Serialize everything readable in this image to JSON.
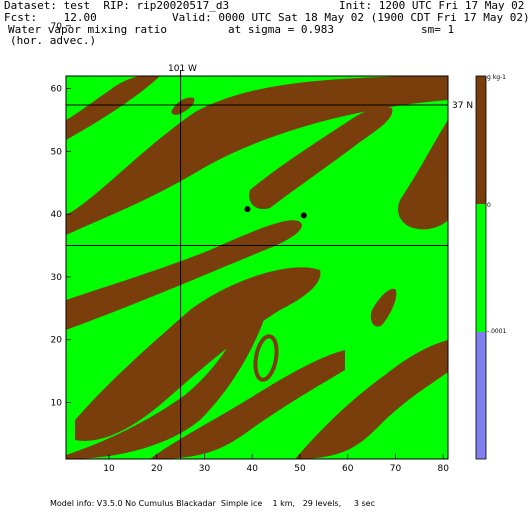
{
  "header": {
    "dataset": "Dataset: test  RIP: rip20020517_d3",
    "init": "Init: 1200 UTC Fri 17 May 02",
    "fcst": "Fcst:    12.00",
    "valid": "Valid: 0000 UTC Sat 18 May 02 (1900 CDT Fri 17 May 02)",
    "field": "Water vapor mixing ratio",
    "sigma": "at sigma = 0.983",
    "sm": "sm= 1",
    "advec": "(hor. advec.)"
  },
  "map_labels": {
    "lon_label": "101 W",
    "lat_label": "37 N"
  },
  "footer": "Model info: V3.5.0 No Cumulus Blackadar  Simple ice    1 km,   29 levels,     3 sec",
  "colors": {
    "positive": "#7a3e0c",
    "zero_band": "#00ff00",
    "negative": "#8080f0",
    "lines": "#000000"
  },
  "chart_data": {
    "type": "heatmap",
    "xlim": [
      1,
      81
    ],
    "ylim": [
      1,
      62
    ],
    "x_ticks": [
      10,
      20,
      30,
      40,
      50,
      60,
      70,
      80
    ],
    "y_ticks": [
      10,
      20,
      30,
      40,
      50,
      60,
      70
    ],
    "grid": false,
    "colorbar": {
      "labels": [
        "g kg-1",
        "0",
        "-.0001"
      ],
      "levels": [
        {
          "label": "g kg-1",
          "color": "#7a3e0c"
        },
        {
          "label": "0",
          "color": "#00ff00"
        },
        {
          "label": "-.0001",
          "color": "#8080f0"
        }
      ]
    },
    "reference_lines": {
      "longitude_x": 25,
      "latitude_y": 35
    },
    "markers": [
      {
        "x": 39,
        "y": 40.8
      },
      {
        "x": 50.8,
        "y": 39.8
      }
    ]
  }
}
